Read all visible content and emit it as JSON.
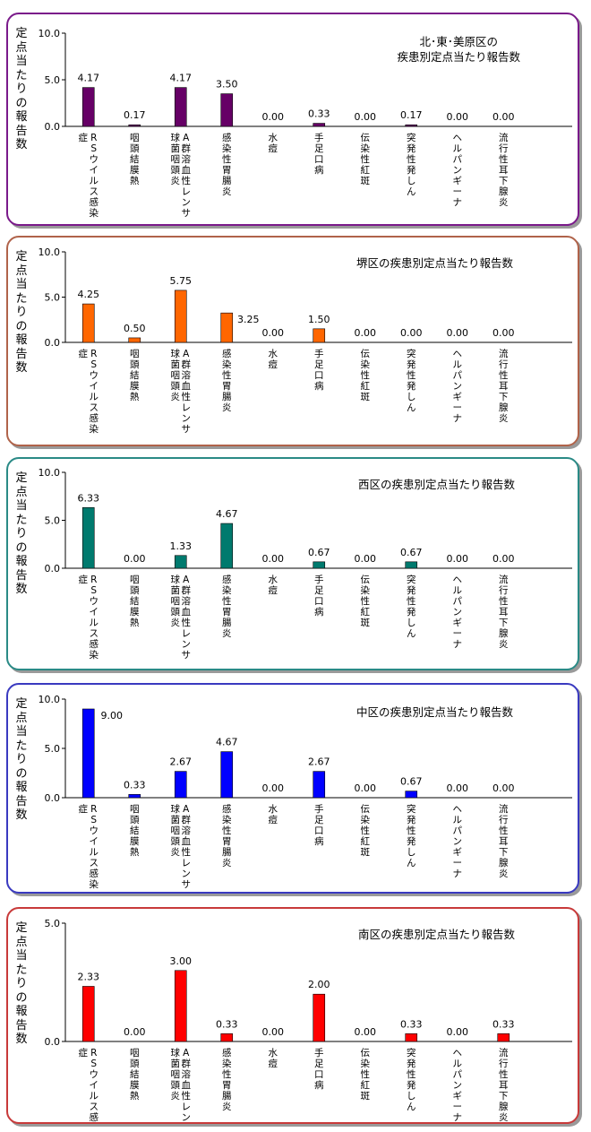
{
  "y_axis_label": "定点当たりの報告数",
  "chart_data": [
    {
      "type": "bar",
      "title": "北･東･美原区の\n疾患別定点当たり報告数",
      "ylabel": "定点当たりの報告数",
      "ylim": [
        0,
        10.0
      ],
      "yticks": [
        "0.0",
        "5.0",
        "10.0"
      ],
      "color": "#660066",
      "border": "#7a1a8a",
      "categories": [
        "RSウイルス感染症",
        "咽頭結膜熱",
        "A群溶血性レンサ球菌咽頭炎",
        "感染性胃腸炎",
        "水痘",
        "手足口病",
        "伝染性紅斑",
        "突発性発しん",
        "ヘルパンギーナ",
        "流行性耳下腺炎"
      ],
      "values": [
        4.17,
        0.17,
        4.17,
        3.5,
        0.0,
        0.33,
        0.0,
        0.17,
        0.0,
        0.0
      ],
      "labels": [
        "4.17",
        "0.17",
        "4.17",
        "3.50",
        "0.00",
        "0.33",
        "0.00",
        "0.17",
        "0.00",
        "0.00"
      ]
    },
    {
      "type": "bar",
      "title": "堺区の疾患別定点当たり報告数",
      "ylabel": "定点当たりの報告数",
      "ylim": [
        0,
        10.0
      ],
      "yticks": [
        "0.0",
        "5.0",
        "10.0"
      ],
      "color": "#ff6600",
      "border": "#b0634a",
      "categories": [
        "RSウイルス感染症",
        "咽頭結膜熱",
        "A群溶血性レンサ球菌咽頭炎",
        "感染性胃腸炎",
        "水痘",
        "手足口病",
        "伝染性紅斑",
        "突発性発しん",
        "ヘルパンギーナ",
        "流行性耳下腺炎"
      ],
      "values": [
        4.25,
        0.5,
        5.75,
        3.25,
        0.0,
        1.5,
        0.0,
        0.0,
        0.0,
        0.0
      ],
      "labels": [
        "4.25",
        "0.50",
        "5.75",
        "3.25",
        "0.00",
        "1.50",
        "0.00",
        "0.00",
        "0.00",
        "0.00"
      ]
    },
    {
      "type": "bar",
      "title": "西区の疾患別定点当たり報告数",
      "ylabel": "定点当たりの報告数",
      "ylim": [
        0,
        10.0
      ],
      "yticks": [
        "0.0",
        "5.0",
        "10.0"
      ],
      "color": "#007a6e",
      "border": "#2a8a86",
      "categories": [
        "RSウイルス感染症",
        "咽頭結膜熱",
        "A群溶血性レンサ球菌咽頭炎",
        "感染性胃腸炎",
        "水痘",
        "手足口病",
        "伝染性紅斑",
        "突発性発しん",
        "ヘルパンギーナ",
        "流行性耳下腺炎"
      ],
      "values": [
        6.33,
        0.0,
        1.33,
        4.67,
        0.0,
        0.67,
        0.0,
        0.67,
        0.0,
        0.0
      ],
      "labels": [
        "6.33",
        "0.00",
        "1.33",
        "4.67",
        "0.00",
        "0.67",
        "0.00",
        "0.67",
        "0.00",
        "0.00"
      ]
    },
    {
      "type": "bar",
      "title": "中区の疾患別定点当たり報告数",
      "ylabel": "定点当たりの報告数",
      "ylim": [
        0,
        10.0
      ],
      "yticks": [
        "0.0",
        "5.0",
        "10.0"
      ],
      "color": "#0000ff",
      "border": "#3a3ac0",
      "categories": [
        "RSウイルス感染症",
        "咽頭結膜熱",
        "A群溶血性レンサ球菌咽頭炎",
        "感染性胃腸炎",
        "水痘",
        "手足口病",
        "伝染性紅斑",
        "突発性発しん",
        "ヘルパンギーナ",
        "流行性耳下腺炎"
      ],
      "values": [
        9.0,
        0.33,
        2.67,
        4.67,
        0.0,
        2.67,
        0.0,
        0.67,
        0.0,
        0.0
      ],
      "labels": [
        "9.00",
        "0.33",
        "2.67",
        "4.67",
        "0.00",
        "2.67",
        "0.00",
        "0.67",
        "0.00",
        "0.00"
      ]
    },
    {
      "type": "bar",
      "title": "南区の疾患別定点当たり報告数",
      "ylabel": "定点当たりの報告数",
      "ylim": [
        0,
        5.0
      ],
      "yticks": [
        "0.0",
        "5.0"
      ],
      "color": "#ff0000",
      "border": "#c83a3a",
      "categories": [
        "RSウイルス感染症",
        "咽頭結膜熱",
        "A群溶血性レンサ球菌咽頭炎",
        "感染性胃腸炎",
        "水痘",
        "手足口病",
        "伝染性紅斑",
        "突発性発しん",
        "ヘルパンギーナ",
        "流行性耳下腺炎"
      ],
      "values": [
        2.33,
        0.0,
        3.0,
        0.33,
        0.0,
        2.0,
        0.0,
        0.33,
        0.0,
        0.33
      ],
      "labels": [
        "2.33",
        "0.00",
        "3.00",
        "0.33",
        "0.00",
        "2.00",
        "0.00",
        "0.33",
        "0.00",
        "0.33"
      ]
    }
  ]
}
